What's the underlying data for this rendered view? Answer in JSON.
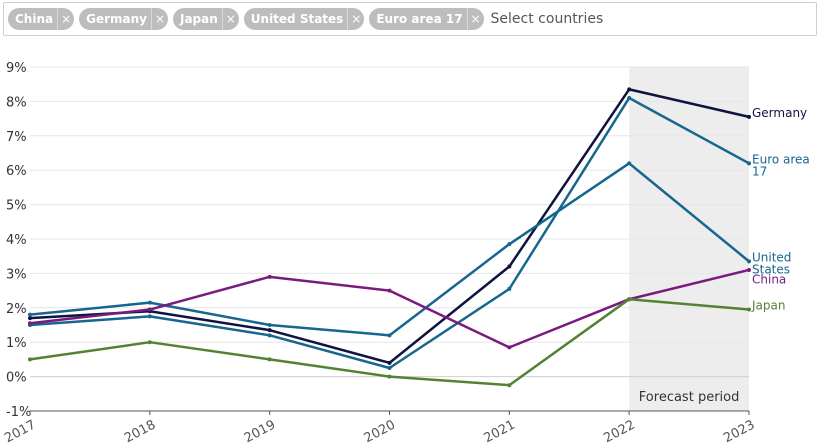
{
  "filter": {
    "chips": [
      {
        "label": "China"
      },
      {
        "label": "Germany"
      },
      {
        "label": "Japan"
      },
      {
        "label": "United States"
      },
      {
        "label": "Euro area 17"
      }
    ],
    "remove_glyph": "×",
    "placeholder": "Select countries"
  },
  "chart_data": {
    "type": "line",
    "x": [
      2017,
      2018,
      2019,
      2020,
      2021,
      2022,
      2023
    ],
    "ylim": [
      -1,
      9
    ],
    "yticks": [
      -1,
      0,
      1,
      2,
      3,
      4,
      5,
      6,
      7,
      8,
      9
    ],
    "ytick_labels": [
      "-1%",
      "0%",
      "1%",
      "2%",
      "3%",
      "4%",
      "5%",
      "6%",
      "7%",
      "8%",
      "9%"
    ],
    "grid": true,
    "annotation": {
      "text": "Forecast period",
      "x_start": 2022,
      "x_end": 2023
    },
    "series": [
      {
        "name": "Germany",
        "label_lines": [
          "Germany"
        ],
        "color": "#0f1340",
        "values": [
          1.7,
          1.9,
          1.35,
          0.4,
          3.2,
          8.35,
          7.55
        ]
      },
      {
        "name": "Euro area 17",
        "label_lines": [
          "Euro area",
          "17"
        ],
        "color": "#17668f",
        "values": [
          1.5,
          1.75,
          1.2,
          0.25,
          2.55,
          8.1,
          6.2
        ]
      },
      {
        "name": "United States",
        "label_lines": [
          "United",
          "States"
        ],
        "color": "#17668f",
        "values": [
          1.8,
          2.15,
          1.5,
          1.2,
          3.85,
          6.2,
          3.35
        ]
      },
      {
        "name": "China",
        "label_lines": [
          "China"
        ],
        "color": "#7a1a7e",
        "values": [
          1.55,
          1.95,
          2.9,
          2.5,
          0.85,
          2.25,
          3.1
        ]
      },
      {
        "name": "Japan",
        "label_lines": [
          "Japan"
        ],
        "color": "#548235",
        "values": [
          0.5,
          1.0,
          0.5,
          0.0,
          -0.25,
          2.25,
          1.95
        ]
      }
    ]
  }
}
